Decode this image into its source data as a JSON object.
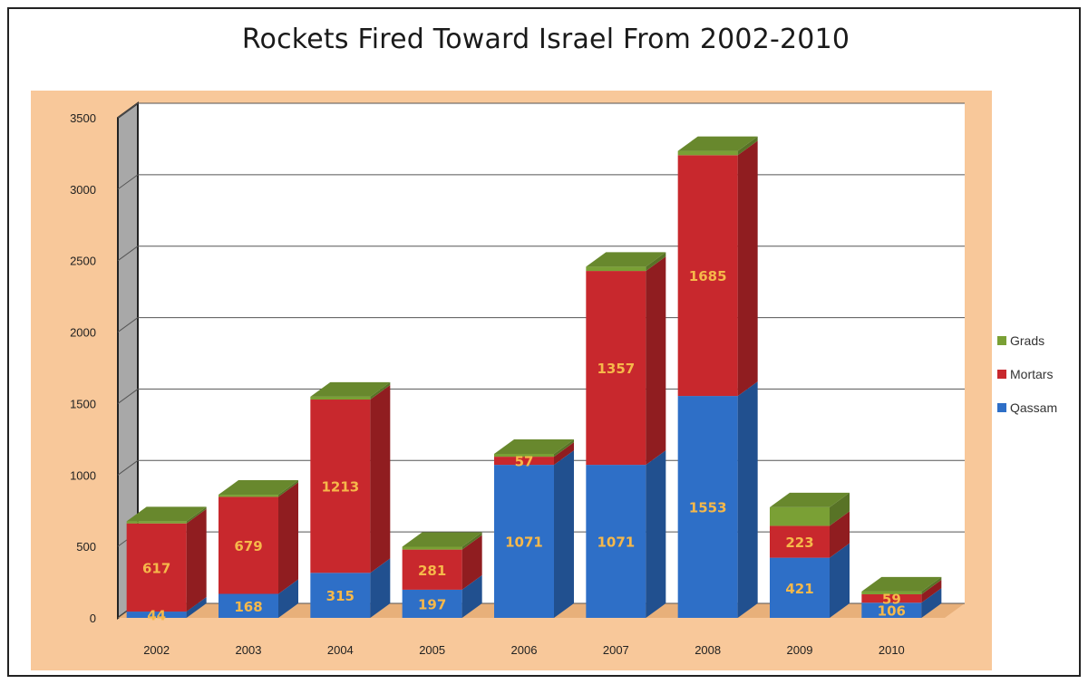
{
  "chart_data": {
    "type": "bar",
    "stacked": true,
    "title": "Rockets Fired Toward Israel From 2002-2010",
    "xlabel": "",
    "ylabel": "",
    "ylim": [
      0,
      3500
    ],
    "yticks": [
      "0",
      "500",
      "1000",
      "1500",
      "2000",
      "2500",
      "3000",
      "3500"
    ],
    "grid": true,
    "legend": "right",
    "categories": [
      "2002",
      "2003",
      "2004",
      "2005",
      "2006",
      "2007",
      "2008",
      "2009",
      "2010"
    ],
    "series": [
      {
        "name": "Qassam",
        "color": "#2e6fc7",
        "values": [
          44,
          168,
          315,
          197,
          1071,
          1071,
          1553,
          421,
          106
        ]
      },
      {
        "name": "Mortars",
        "color": "#c8282d",
        "values": [
          617,
          679,
          1213,
          281,
          57,
          1357,
          1685,
          223,
          59
        ]
      },
      {
        "name": "Grads",
        "color": "#7aa035",
        "values": [
          15,
          15,
          20,
          20,
          20,
          30,
          30,
          130,
          20
        ]
      }
    ],
    "data_labels": {
      "Qassam": [
        "44",
        "168",
        "315",
        "197",
        "1071",
        "1071",
        "1553",
        "421",
        "106"
      ],
      "Mortars": [
        "617",
        "679",
        "1213",
        "281",
        "57",
        "1357",
        "1685",
        "223",
        "59"
      ]
    },
    "legend_order": [
      "Grads",
      "Mortars",
      "Qassam"
    ]
  },
  "colors": {
    "panel": "#f8c89a",
    "wall": "#ffffff",
    "side_wall": "#a8a8a8"
  }
}
